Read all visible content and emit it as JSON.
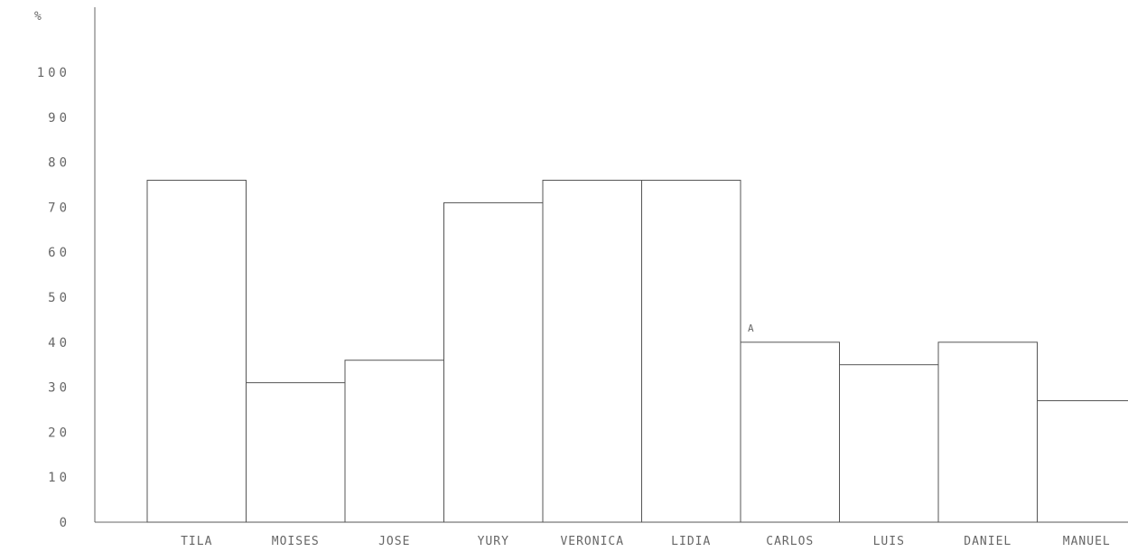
{
  "chart_data": {
    "type": "bar",
    "title": "",
    "xlabel": "",
    "ylabel": "%",
    "ylim": [
      0,
      120
    ],
    "yticks": [
      "0",
      "10",
      "20",
      "30",
      "40",
      "50",
      "60",
      "70",
      "80",
      "90",
      "100"
    ],
    "categories": [
      "TILA",
      "MOISES",
      "JOSE",
      "YURY",
      "VERONICA",
      "LIDIA",
      "CARLOS",
      "LUIS",
      "DANIEL",
      "MANUEL"
    ],
    "values": [
      76,
      31,
      36,
      71,
      76,
      76,
      40,
      35,
      40,
      27
    ],
    "annotations": [
      {
        "category": "CARLOS",
        "text": "A"
      }
    ],
    "grid": false,
    "legend": "none",
    "colors": {
      "bar_fill": "#ffffff",
      "bar_stroke": "#555555",
      "axis": "#666666",
      "text": "#666666"
    }
  }
}
